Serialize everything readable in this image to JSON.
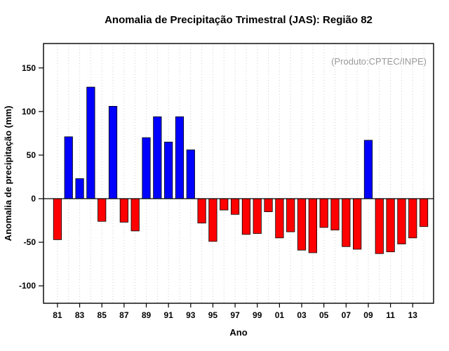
{
  "page": {
    "title": "Anomalia de Precipitação Trimestral (JAS): Região 82"
  },
  "chart_data": {
    "type": "bar",
    "title": "Anomalia de Precipitação Trimestral (JAS): Região 82",
    "xlabel": "Ano",
    "ylabel": "Anomalia de precipitação (mm)",
    "annotation": "(Produto:CPTEC/INPE)",
    "ylim": [
      -120,
      178
    ],
    "yticks": [
      -100,
      -50,
      0,
      50,
      100,
      150
    ],
    "grid": "vertical-dotted",
    "legend": "none",
    "categories": [
      "81",
      "82",
      "83",
      "84",
      "85",
      "86",
      "87",
      "88",
      "89",
      "90",
      "91",
      "92",
      "93",
      "94",
      "95",
      "96",
      "97",
      "98",
      "99",
      "00",
      "01",
      "02",
      "03",
      "04",
      "05",
      "06",
      "07",
      "08",
      "09",
      "10",
      "11",
      "12",
      "13",
      "14"
    ],
    "xtick_labels": [
      "81",
      "83",
      "85",
      "87",
      "89",
      "91",
      "93",
      "95",
      "97",
      "99",
      "01",
      "03",
      "05",
      "07",
      "09",
      "11",
      "13"
    ],
    "values": [
      -47,
      71,
      23,
      128,
      -26,
      106,
      -27,
      -37,
      70,
      94,
      65,
      94,
      56,
      -28,
      -49,
      -13,
      -18,
      -41,
      -40,
      -15,
      -45,
      -38,
      -59,
      -62,
      -33,
      -36,
      -55,
      -58,
      67,
      -63,
      -61,
      -52,
      -45,
      -32
    ],
    "positive_color": "#0000ff",
    "negative_color": "#ff0000",
    "grid_color": "#cfcfcf",
    "annotation_color": "#9a9a9a"
  }
}
